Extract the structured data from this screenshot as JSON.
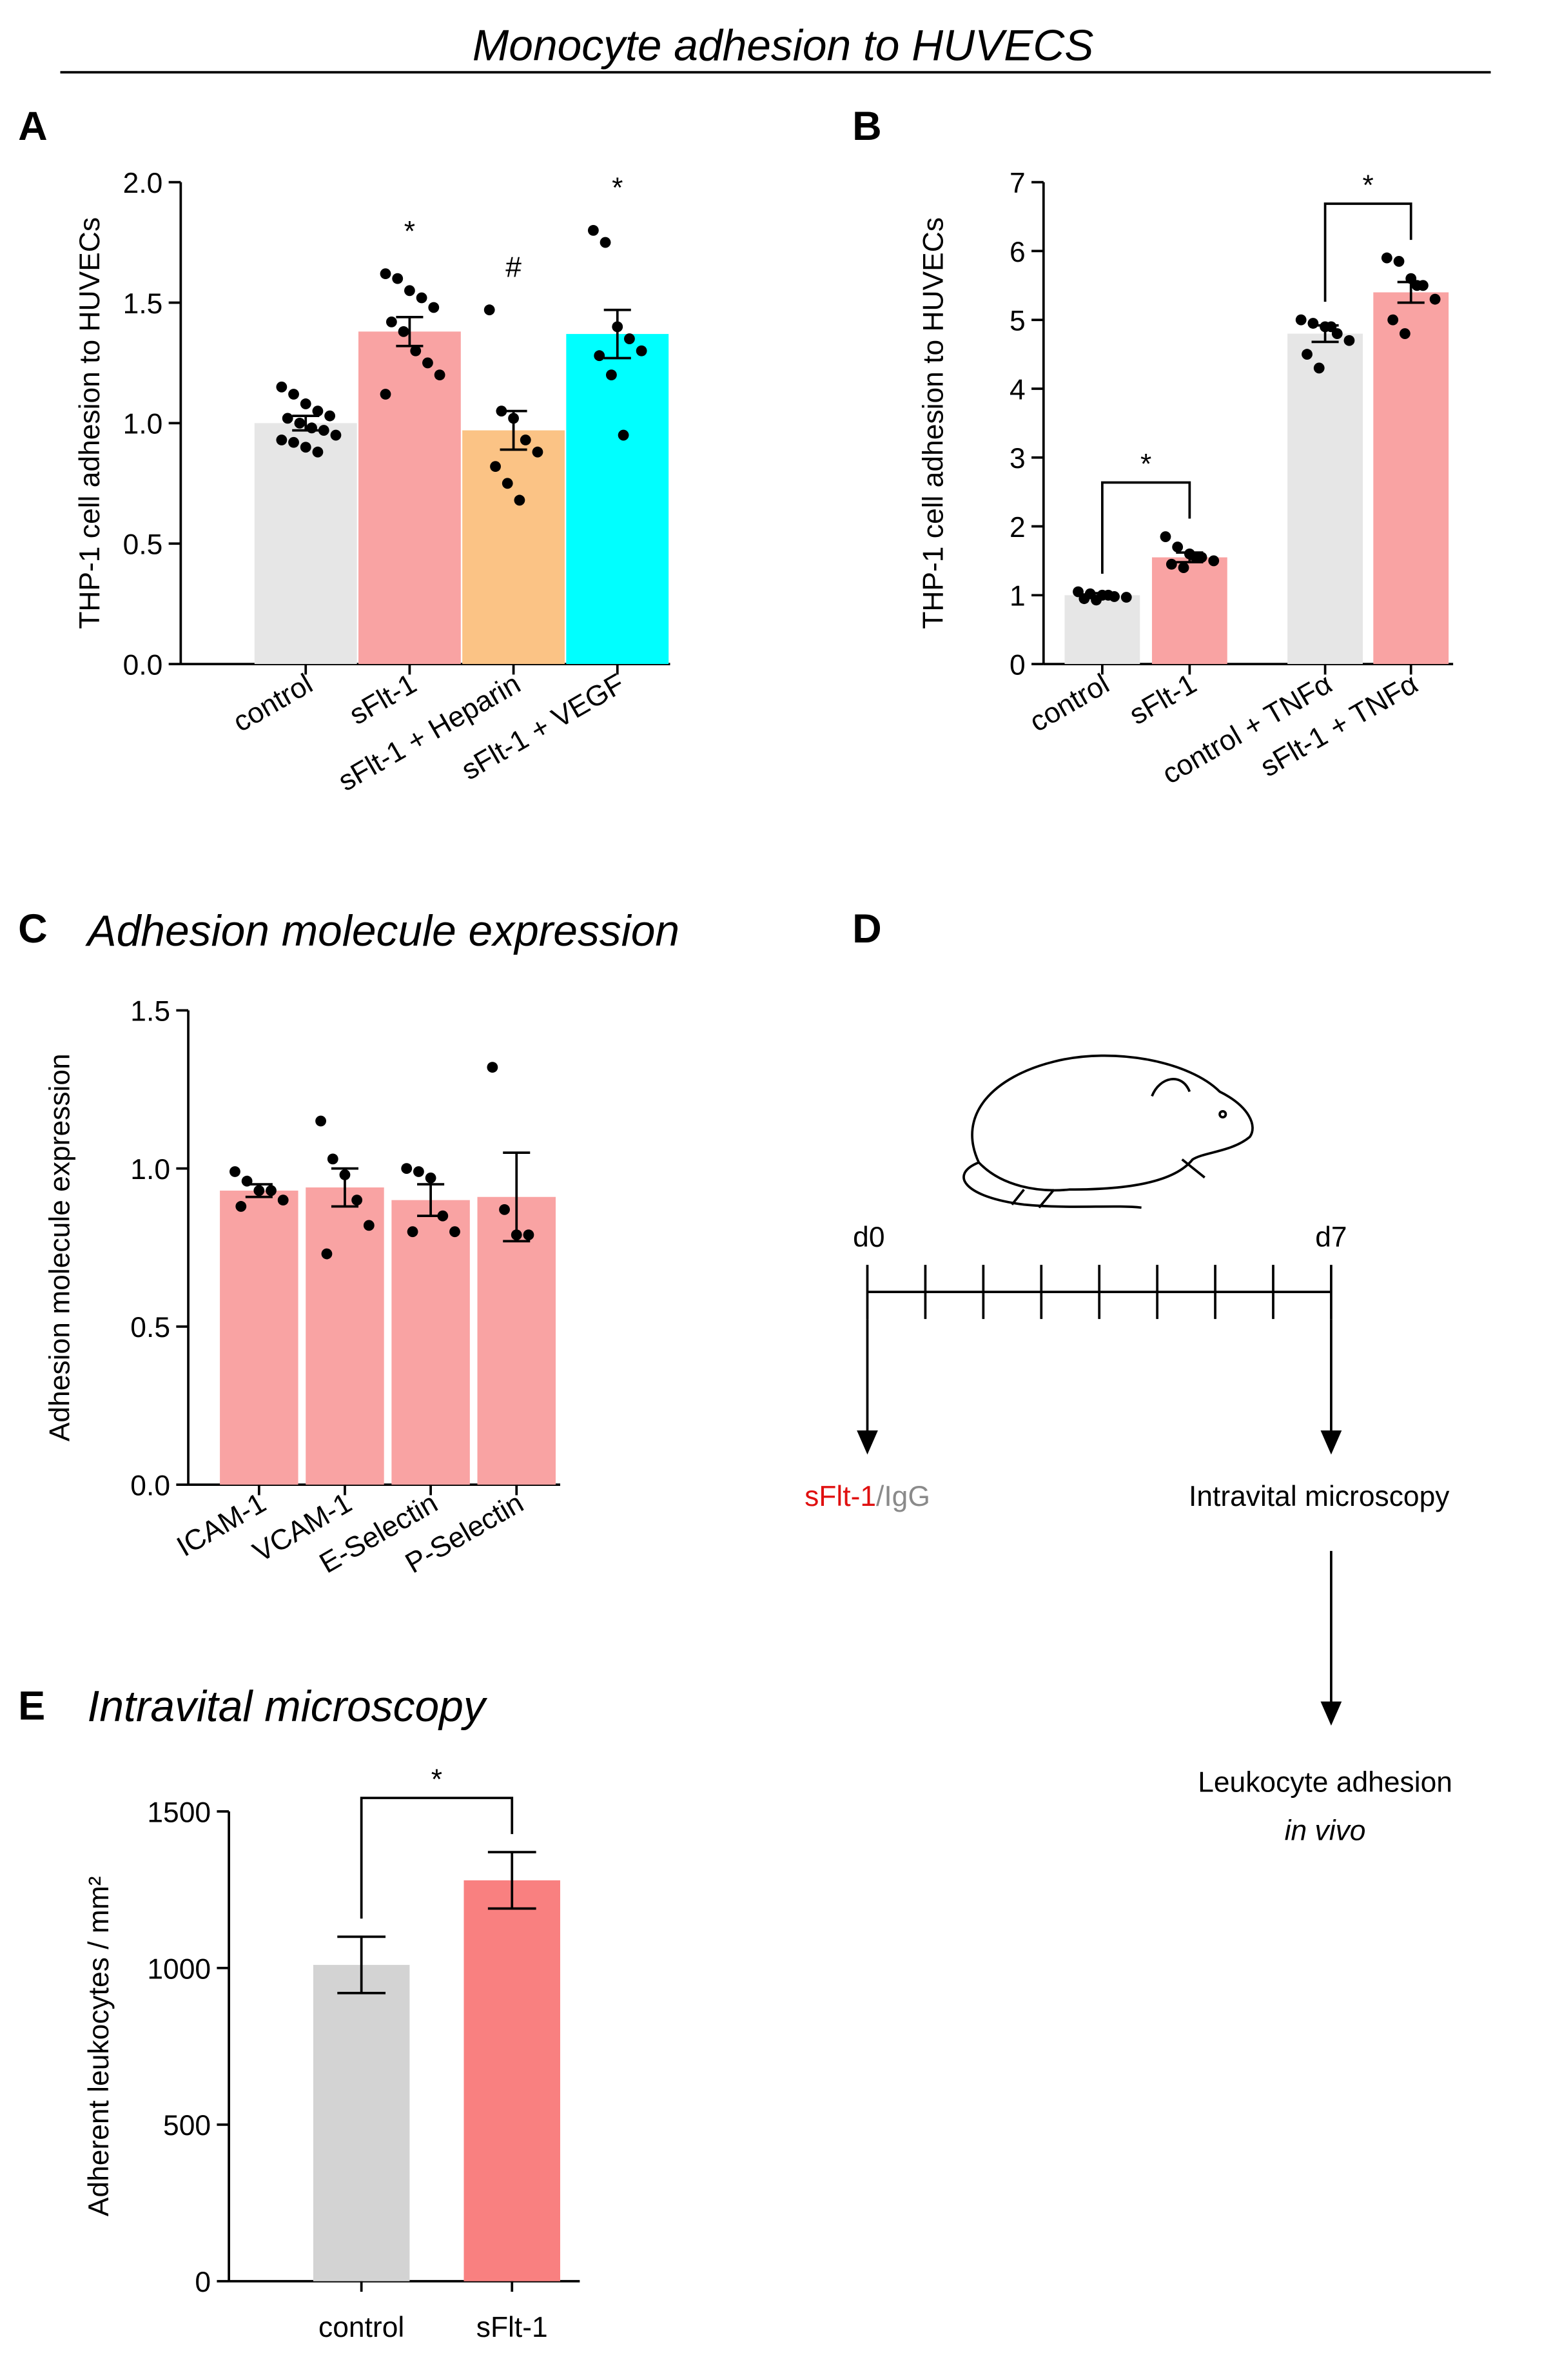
{
  "title": "Monocyte adhesion to HUVECS",
  "chart_data": [
    {
      "type": "bar",
      "panel": "A",
      "ylabel": "THP-1 cell adhesion to HUVECs",
      "categories": [
        "control",
        "sFlt-1",
        "sFlt-1 + Heparin",
        "sFlt-1 + VEGF"
      ],
      "values": [
        1.0,
        1.38,
        0.97,
        1.37
      ],
      "errors": [
        0.03,
        0.06,
        0.08,
        0.1
      ],
      "colors": [
        "#e6e6e6",
        "#f9a3a3",
        "#fbc385",
        "#00ffff"
      ],
      "points": [
        [
          1.15,
          1.12,
          1.08,
          1.05,
          1.03,
          1.02,
          1.0,
          0.98,
          0.97,
          0.95,
          0.93,
          0.92,
          0.9,
          0.88
        ],
        [
          1.62,
          1.6,
          1.55,
          1.52,
          1.48,
          1.42,
          1.38,
          1.3,
          1.25,
          1.2,
          1.12
        ],
        [
          1.47,
          1.05,
          1.02,
          0.93,
          0.88,
          0.82,
          0.75,
          0.68
        ],
        [
          1.8,
          1.75,
          1.4,
          1.35,
          1.3,
          1.28,
          1.2,
          0.95
        ]
      ],
      "ylim": [
        0,
        2
      ],
      "yticks": [
        {
          "value": 0,
          "label": "0.0"
        },
        0.5,
        {
          "value": 1,
          "label": "1.0"
        },
        1.5,
        {
          "value": 2,
          "label": "2.0"
        }
      ],
      "annotations": [
        {
          "text": "*",
          "category": 1
        },
        {
          "text": "#",
          "category": 2
        },
        {
          "text": "*",
          "category": 3
        }
      ]
    },
    {
      "type": "bar",
      "panel": "B",
      "ylabel": "THP-1 cell adhesion to HUVECs",
      "categories": [
        "control",
        "sFlt-1",
        "control + TNFα",
        "sFlt-1 + TNFα"
      ],
      "values": [
        1.0,
        1.55,
        4.8,
        5.4
      ],
      "errors": [
        0.03,
        0.07,
        0.12,
        0.15
      ],
      "colors": [
        "#e6e6e6",
        "#f9a3a3",
        "#e6e6e6",
        "#f9a3a3"
      ],
      "points": [
        [
          1.05,
          1.02,
          1.0,
          0.98,
          0.97,
          0.95,
          0.93,
          1.0
        ],
        [
          1.85,
          1.7,
          1.6,
          1.55,
          1.5,
          1.45,
          1.4,
          1.55
        ],
        [
          5.0,
          4.95,
          4.9,
          4.8,
          4.7,
          4.5,
          4.3,
          4.9
        ],
        [
          5.9,
          5.85,
          5.6,
          5.5,
          5.3,
          5.0,
          4.8,
          5.5
        ]
      ],
      "ylim": [
        0,
        7
      ],
      "yticks": [
        0,
        1,
        2,
        3,
        4,
        5,
        6,
        7
      ],
      "annotations": [
        {
          "text": "*",
          "from": 0,
          "to": 1
        },
        {
          "text": "*",
          "from": 2,
          "to": 3
        }
      ]
    },
    {
      "type": "bar",
      "panel": "C",
      "title": "Adhesion molecule expression",
      "ylabel": "Adhesion molecule expression",
      "categories": [
        "ICAM-1",
        "VCAM-1",
        "E-Selectin",
        "P-Selectin"
      ],
      "values": [
        0.93,
        0.94,
        0.9,
        0.91
      ],
      "errors": [
        0.02,
        0.06,
        0.05,
        0.14
      ],
      "colors": [
        "#f9a3a3",
        "#f9a3a3",
        "#f9a3a3",
        "#f9a3a3"
      ],
      "points": [
        [
          0.99,
          0.96,
          0.93,
          0.93,
          0.9,
          0.88
        ],
        [
          1.15,
          1.03,
          0.98,
          0.9,
          0.82,
          0.73
        ],
        [
          1.0,
          0.99,
          0.97,
          0.85,
          0.8,
          0.8
        ],
        [
          1.32,
          0.87,
          0.79,
          0.79
        ]
      ],
      "ylim": [
        0,
        1.5
      ],
      "yticks": [
        {
          "value": 0,
          "label": "0.0"
        },
        0.5,
        {
          "value": 1,
          "label": "1.0"
        },
        1.5
      ]
    },
    {
      "type": "bar",
      "panel": "E",
      "title": "Intravital microscopy",
      "ylabel": "Adherent leukocytes / mm²",
      "categories": [
        "control",
        "sFlt-1"
      ],
      "values": [
        1010,
        1280
      ],
      "errors": [
        90,
        90
      ],
      "colors": [
        "#d3d3d3",
        "#f98080"
      ],
      "ylim": [
        0,
        1500
      ],
      "yticks": [
        0,
        500,
        1000,
        1500
      ],
      "annotations": [
        {
          "text": "*",
          "from": 0,
          "to": 1
        }
      ]
    }
  ],
  "diagram": {
    "panel": "D",
    "start": "d0",
    "end": "d7",
    "treatment_1": "sFlt-1",
    "treatment_2": "/IgG",
    "step_1": "Intravital microscopy",
    "step_2": "Leukocyte adhesion",
    "step_2_italic": "in vivo"
  }
}
